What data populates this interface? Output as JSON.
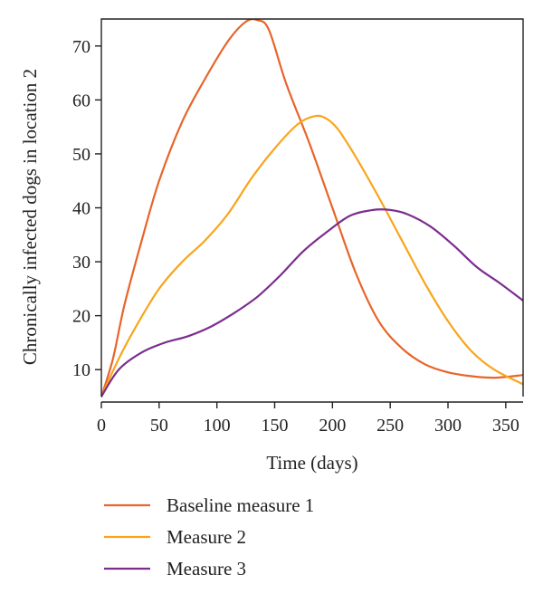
{
  "chart_data": {
    "type": "line",
    "xlabel": "Time (days)",
    "ylabel": "Chronically infected dogs in location 2",
    "xlim": [
      0,
      365
    ],
    "ylim": [
      5,
      75
    ],
    "xticks": [
      0,
      50,
      100,
      150,
      200,
      250,
      300,
      350
    ],
    "yticks": [
      10,
      20,
      30,
      40,
      50,
      60,
      70
    ],
    "grid": false,
    "legend_position": "bottom",
    "series": [
      {
        "name": "Baseline measure 1",
        "color": "#e8642a",
        "x": [
          0,
          10,
          20,
          35,
          50,
          70,
          90,
          110,
          125,
          135,
          145,
          160,
          180,
          200,
          220,
          240,
          260,
          280,
          300,
          320,
          340,
          365
        ],
        "y": [
          5,
          12,
          22,
          34,
          45,
          56,
          64,
          71,
          74.5,
          74.8,
          73,
          63,
          52,
          40,
          28,
          19,
          14,
          11,
          9.5,
          8.8,
          8.5,
          9
        ]
      },
      {
        "name": "Measure 2",
        "color": "#f9a51b",
        "x": [
          0,
          15,
          30,
          50,
          70,
          90,
          110,
          130,
          150,
          170,
          185,
          195,
          205,
          220,
          240,
          260,
          280,
          300,
          320,
          340,
          365
        ],
        "y": [
          5,
          12,
          18,
          25,
          30,
          34,
          39,
          45.5,
          51,
          55.5,
          57,
          56.5,
          54.5,
          49.5,
          42,
          34,
          26,
          19,
          13.5,
          10,
          7.3
        ]
      },
      {
        "name": "Measure 3",
        "color": "#7b2d8e",
        "x": [
          0,
          15,
          35,
          55,
          75,
          95,
          115,
          135,
          155,
          175,
          195,
          215,
          235,
          250,
          265,
          285,
          305,
          325,
          345,
          365
        ],
        "y": [
          5,
          10,
          13.2,
          15,
          16.2,
          18,
          20.5,
          23.5,
          27.5,
          32,
          35.5,
          38.5,
          39.6,
          39.6,
          38.8,
          36.5,
          33,
          29,
          26,
          22.8
        ]
      }
    ]
  }
}
